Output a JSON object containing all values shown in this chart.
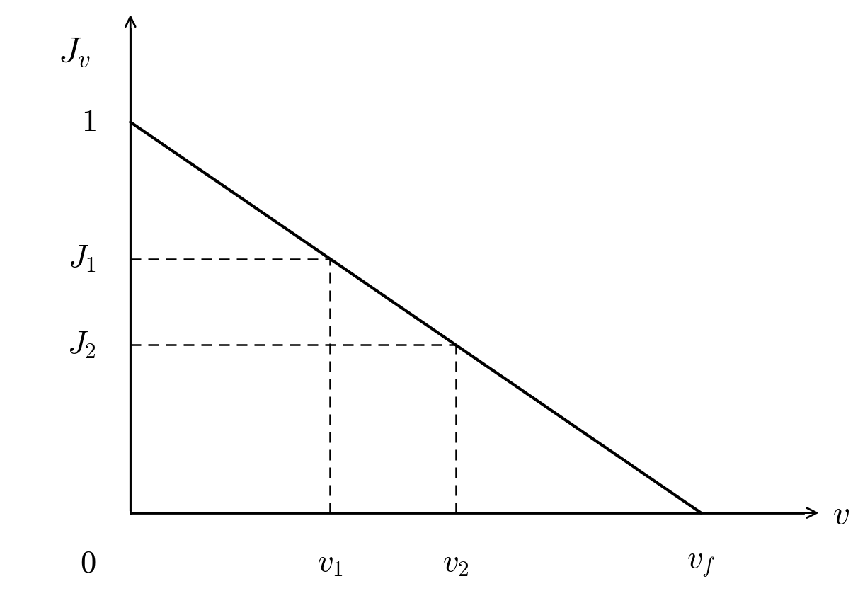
{
  "background_color": "#ffffff",
  "line_color": "#000000",
  "dashed_color": "#000000",
  "line_width": 3.0,
  "dashed_linewidth": 1.8,
  "axis_linewidth": 2.0,
  "arrow_color": "#000000",
  "v1": 0.35,
  "v2": 0.57,
  "vf": 1.0,
  "J1_label": "$J_1$",
  "J2_label": "$J_2$",
  "Jv_label": "$J_v$",
  "v_label": "$v$",
  "v1_label": "$v_1$",
  "v2_label": "$v_2$",
  "vf_label": "$v_f$",
  "one_label": "$\\mathbf{1}$",
  "zero_label": "$\\mathbf{0}$",
  "label_fontsize": 30,
  "figsize": [
    12.05,
    8.35
  ],
  "dpi": 100
}
